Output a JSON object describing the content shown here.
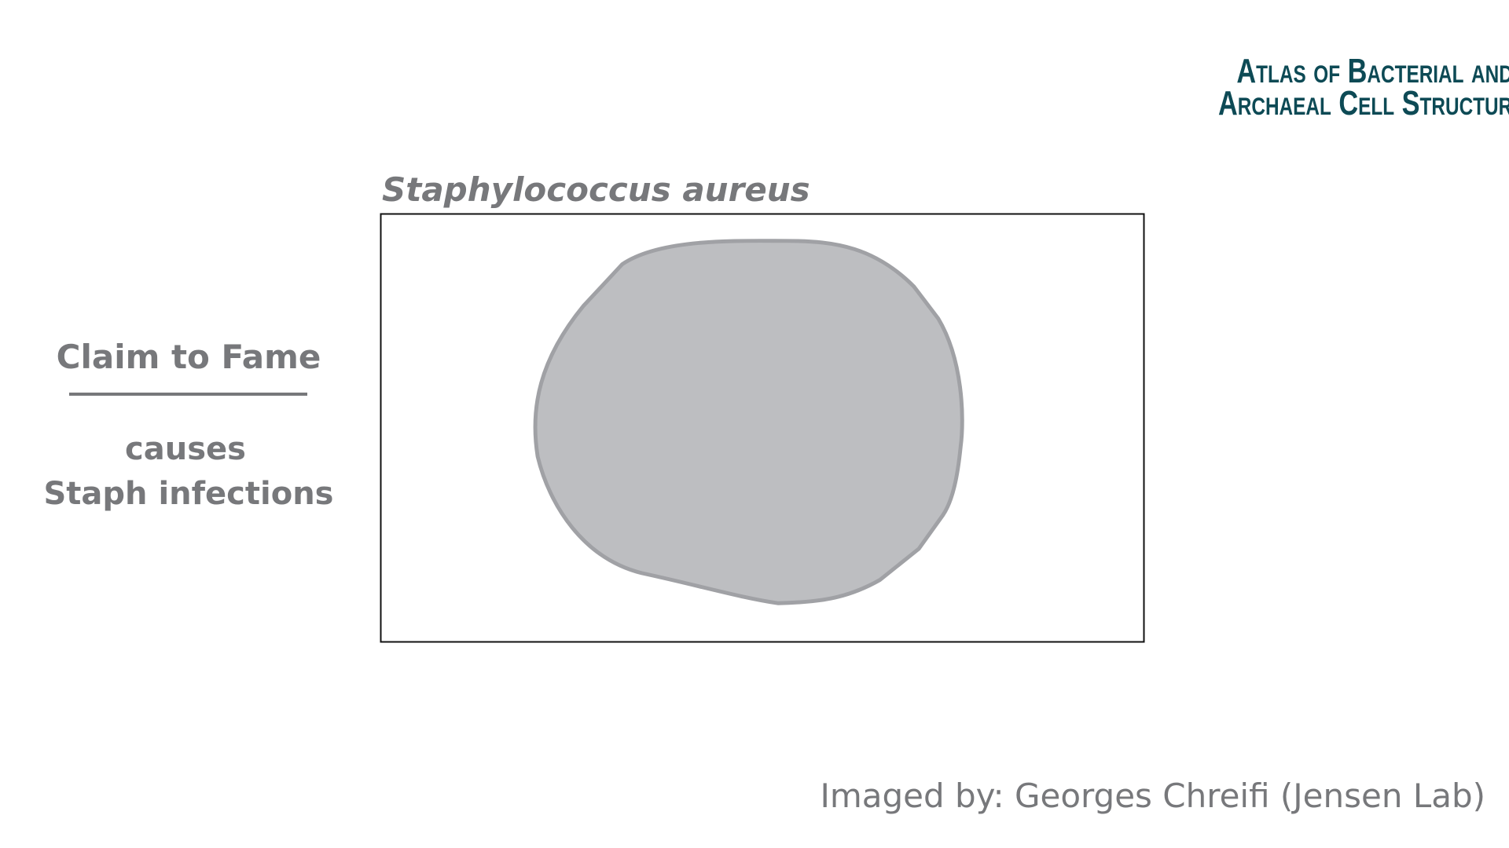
{
  "header": {
    "logo": [
      "Atlas of Bacterial and",
      "Archaeal Cell Structure"
    ]
  },
  "title": "Staphylococcus aureus",
  "sidebar": {
    "heading": "Claim to Fame",
    "text": [
      "causes",
      "Staph infections"
    ]
  },
  "footer": {
    "credit": "Imaged by: Georges Chreifi (Jensen Lab)"
  }
}
